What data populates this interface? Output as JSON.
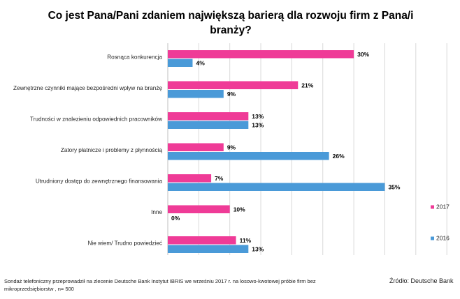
{
  "chart_data": {
    "type": "bar",
    "orientation": "horizontal",
    "title": "Co jest Pana/Pani zdaniem największą barierą dla rozwoju firm z Pana/i branży?",
    "categories": [
      "Rosnąca konkurencja",
      "Zewnętrzne czynniki mające bezpośredni wpływ na branżę",
      "Trudności w znalezieniu odpowiednich pracowników",
      "Zatory płatnicze i problemy z płynnością",
      "Utrudniony dostęp do zewnętrznego finansowania",
      "Inne",
      "Nie wiem/ Trudno powiedzieć"
    ],
    "series": [
      {
        "name": "2017",
        "color": "#ef3b97",
        "values": [
          30,
          21,
          13,
          9,
          7,
          10,
          11
        ]
      },
      {
        "name": "2016",
        "color": "#4a9ad8",
        "values": [
          4,
          9,
          13,
          26,
          35,
          0,
          13
        ]
      }
    ],
    "value_suffix": "%",
    "xlim": [
      0,
      45
    ],
    "grid": "vertical",
    "legend_position": "right"
  },
  "footnote": "Sondaż telefoniczny przeprowadził na zlecenie Deutsche Bank Instytut IBRIS we wrześniu 2017 r. na losowo-kwotowej próbie firm bez mikroprzedsiębiorstw , n= 500",
  "source": "Źródło: Deutsche Bank"
}
